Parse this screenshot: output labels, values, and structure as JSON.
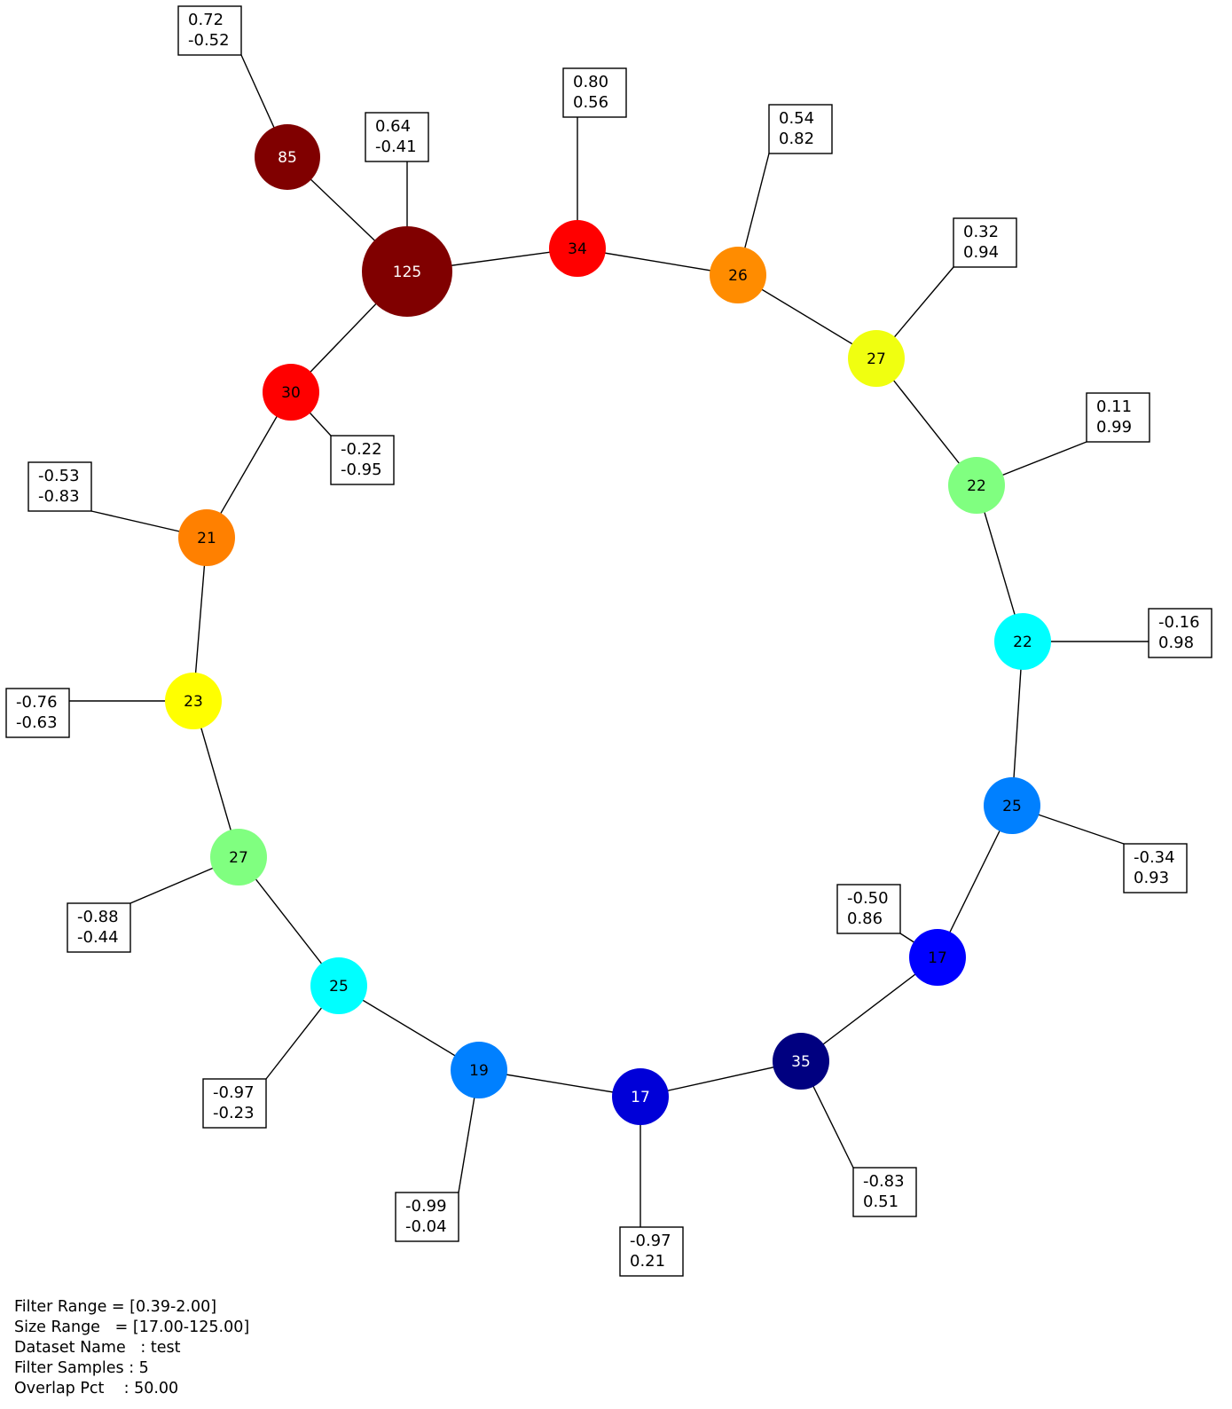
{
  "nodes": [
    {
      "id": "n125",
      "label": "125",
      "color": "#800000",
      "text_color": "#ffffff"
    },
    {
      "id": "n85",
      "label": "85",
      "color": "#800000",
      "text_color": "#ffffff"
    },
    {
      "id": "n34",
      "label": "34",
      "color": "#ff0000",
      "text_color": "#000000"
    },
    {
      "id": "n26",
      "label": "26",
      "color": "#ff8c00",
      "text_color": "#000000"
    },
    {
      "id": "n27a",
      "label": "27",
      "color": "#f0ff10",
      "text_color": "#000000"
    },
    {
      "id": "n22a",
      "label": "22",
      "color": "#80ff80",
      "text_color": "#000000"
    },
    {
      "id": "n22b",
      "label": "22",
      "color": "#00ffff",
      "text_color": "#000000"
    },
    {
      "id": "n25a",
      "label": "25",
      "color": "#0080ff",
      "text_color": "#000000"
    },
    {
      "id": "n17a",
      "label": "17",
      "color": "#0000ff",
      "text_color": "#000000"
    },
    {
      "id": "n35",
      "label": "35",
      "color": "#000080",
      "text_color": "#ffffff"
    },
    {
      "id": "n17b",
      "label": "17",
      "color": "#0000d8",
      "text_color": "#ffffff"
    },
    {
      "id": "n19",
      "label": "19",
      "color": "#0080ff",
      "text_color": "#000000"
    },
    {
      "id": "n25b",
      "label": "25",
      "color": "#00ffff",
      "text_color": "#000000"
    },
    {
      "id": "n27b",
      "label": "27",
      "color": "#80ff80",
      "text_color": "#000000"
    },
    {
      "id": "n23",
      "label": "23",
      "color": "#ffff00",
      "text_color": "#000000"
    },
    {
      "id": "n21",
      "label": "21",
      "color": "#ff8000",
      "text_color": "#000000"
    },
    {
      "id": "n30",
      "label": "30",
      "color": "#ff0000",
      "text_color": "#000000"
    }
  ],
  "edges": [
    [
      "n85",
      "n125"
    ],
    [
      "n125",
      "n34"
    ],
    [
      "n125",
      "n30"
    ],
    [
      "n34",
      "n26"
    ],
    [
      "n26",
      "n27a"
    ],
    [
      "n27a",
      "n22a"
    ],
    [
      "n22a",
      "n22b"
    ],
    [
      "n22b",
      "n25a"
    ],
    [
      "n25a",
      "n17a"
    ],
    [
      "n17a",
      "n35"
    ],
    [
      "n35",
      "n17b"
    ],
    [
      "n17b",
      "n19"
    ],
    [
      "n19",
      "n25b"
    ],
    [
      "n25b",
      "n27b"
    ],
    [
      "n27b",
      "n23"
    ],
    [
      "n23",
      "n21"
    ],
    [
      "n21",
      "n30"
    ]
  ],
  "node_annotations": [
    {
      "node": "n85",
      "line1": "0.72",
      "line2": "-0.52"
    },
    {
      "node": "n125",
      "line1": "0.64",
      "line2": "-0.41"
    },
    {
      "node": "n34",
      "line1": "0.80",
      "line2": "0.56"
    },
    {
      "node": "n26",
      "line1": "0.54",
      "line2": "0.82"
    },
    {
      "node": "n27a",
      "line1": "0.32",
      "line2": "0.94"
    },
    {
      "node": "n22a",
      "line1": "0.11",
      "line2": "0.99"
    },
    {
      "node": "n22b",
      "line1": "-0.16",
      "line2": "0.98"
    },
    {
      "node": "n25a",
      "line1": "-0.34",
      "line2": "0.93"
    },
    {
      "node": "n17a",
      "line1": "-0.50",
      "line2": "0.86"
    },
    {
      "node": "n35",
      "line1": "-0.83",
      "line2": "0.51"
    },
    {
      "node": "n17b",
      "line1": "-0.97",
      "line2": "0.21"
    },
    {
      "node": "n19",
      "line1": "-0.99",
      "line2": "-0.04"
    },
    {
      "node": "n25b",
      "line1": "-0.97",
      "line2": "-0.23"
    },
    {
      "node": "n27b",
      "line1": "-0.88",
      "line2": "-0.44"
    },
    {
      "node": "n23",
      "line1": "-0.76",
      "line2": "-0.63"
    },
    {
      "node": "n21",
      "line1": "-0.53",
      "line2": "-0.83"
    },
    {
      "node": "n30",
      "line1": "-0.22",
      "line2": "-0.95"
    }
  ],
  "legend": {
    "filter_range": "Filter Range = [0.39-2.00]",
    "size_range": "Size Range   = [17.00-125.00]",
    "dataset_name": "Dataset Name   : test",
    "filter_samples": "Filter Samples : 5",
    "overlap_pct": "Overlap Pct    : 50.00"
  }
}
